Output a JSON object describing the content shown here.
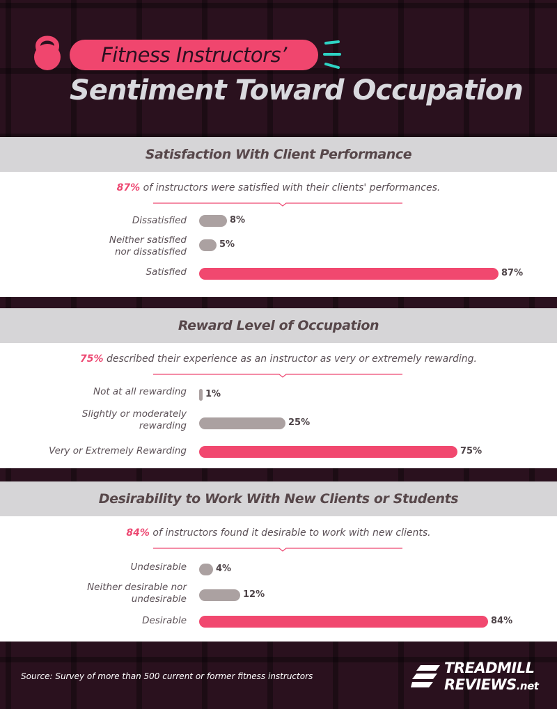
{
  "header": {
    "title_pill": "Fitness Instructors’",
    "title_main": "Sentiment Toward Occupation"
  },
  "colors": {
    "accent": "#f0466e",
    "bar_gray": "#aba1a1",
    "bar_pink": "#f1486f",
    "header_band": "#d6d5d7",
    "background": "#2a111e"
  },
  "chart_data": [
    {
      "type": "bar",
      "orientation": "horizontal",
      "title": "Satisfaction With Client Performance",
      "summary_value": "87%",
      "summary_text": " of instructors were satisfied with their clients' performances.",
      "categories": [
        "Dissatisfied",
        "Neither satisfied nor dissatisfied",
        "Satisfied"
      ],
      "values": [
        8,
        5,
        87
      ],
      "labels": [
        "8%",
        "5%",
        "87%"
      ],
      "highlight": [
        false,
        false,
        true
      ],
      "xlim": [
        0,
        100
      ]
    },
    {
      "type": "bar",
      "orientation": "horizontal",
      "title": "Reward Level of Occupation",
      "summary_value": "75%",
      "summary_text": " described their experience as an instructor as very or extremely rewarding.",
      "categories": [
        "Not at all rewarding",
        "Slightly or moderately rewarding",
        "Very or Extremely Rewarding"
      ],
      "values": [
        1,
        25,
        75
      ],
      "labels": [
        "1%",
        "25%",
        "75%"
      ],
      "highlight": [
        false,
        false,
        true
      ],
      "xlim": [
        0,
        100
      ]
    },
    {
      "type": "bar",
      "orientation": "horizontal",
      "title": "Desirability to Work With New Clients or Students",
      "summary_value": "84%",
      "summary_text": " of instructors found it desirable to work with new clients.",
      "categories": [
        "Undesirable",
        "Neither desirable nor undesirable",
        "Desirable"
      ],
      "values": [
        4,
        12,
        84
      ],
      "labels": [
        "4%",
        "12%",
        "84%"
      ],
      "highlight": [
        false,
        false,
        true
      ],
      "xlim": [
        0,
        100
      ]
    }
  ],
  "footer": {
    "source": "Source: Survey of more than 500 current or former fitness instructors",
    "logo_line1": "TREADMILL",
    "logo_line2": "REVIEWS",
    "logo_suffix": ".net"
  }
}
